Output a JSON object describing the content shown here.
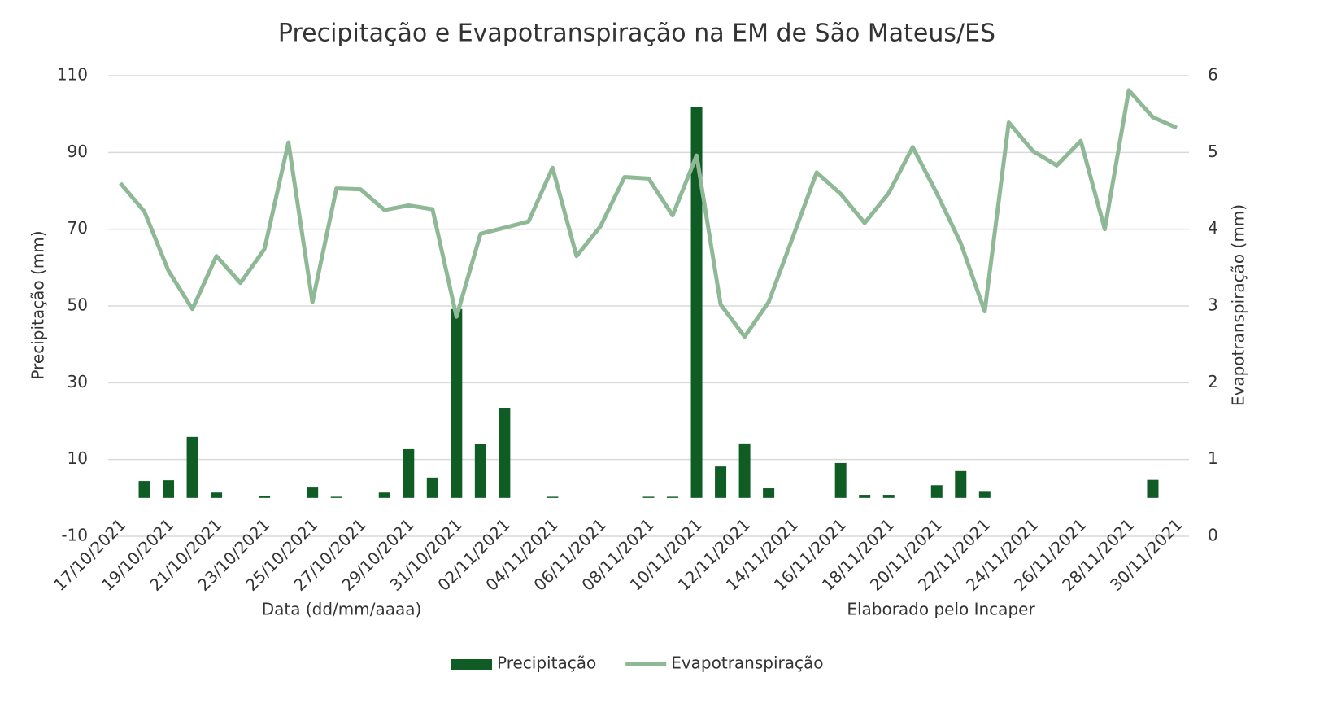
{
  "chart_data": {
    "type": "bar-line",
    "title": "Precipitação e Evapotranspiração na EM de São Mateus/ES",
    "x_label": "Data (dd/mm/aaaa)",
    "annotation": "Elaborado pelo Incaper",
    "y_label": "Precipitação (mm)",
    "y2_label": "Evapotranspiração (mm)",
    "categories": [
      "17/10/2021",
      null,
      "19/10/2021",
      null,
      "21/10/2021",
      null,
      "23/10/2021",
      null,
      "25/10/2021",
      null,
      "27/10/2021",
      null,
      "29/10/2021",
      null,
      "31/10/2021",
      null,
      "02/11/2021",
      null,
      "04/11/2021",
      null,
      "06/11/2021",
      null,
      "08/11/2021",
      null,
      "10/11/2021",
      null,
      "12/11/2021",
      null,
      "14/11/2021",
      null,
      "16/11/2021",
      null,
      "18/11/2021",
      null,
      "20/11/2021",
      null,
      "22/11/2021",
      null,
      "24/11/2021",
      null,
      "26/11/2021",
      null,
      "28/11/2021",
      null,
      "30/11/2021"
    ],
    "series": [
      {
        "name": "Precipitação",
        "type": "bar",
        "color": "#0f5c24",
        "values": [
          0,
          4.4,
          4.6,
          15.9,
          1.4,
          0,
          0.4,
          0,
          2.7,
          0.3,
          0,
          1.4,
          12.7,
          5.3,
          49.2,
          14.0,
          23.5,
          0,
          0.3,
          0,
          0,
          0,
          0.3,
          0.3,
          101.9,
          8.2,
          14.2,
          2.5,
          0,
          0,
          9.1,
          0.8,
          0.8,
          0,
          3.3,
          7.0,
          1.8,
          0,
          0,
          0,
          0,
          0,
          0,
          4.7,
          0
        ]
      },
      {
        "name": "Evapotranspiração",
        "type": "line",
        "axis": "y2",
        "color": "#8fb996",
        "values": [
          4.6,
          4.23,
          3.46,
          2.96,
          3.65,
          3.3,
          3.74,
          5.13,
          3.05,
          4.53,
          4.52,
          4.25,
          4.31,
          4.26,
          2.86,
          3.94,
          4.02,
          4.1,
          4.8,
          3.65,
          4.04,
          4.68,
          4.66,
          4.18,
          4.96,
          3.02,
          2.6,
          3.05,
          3.89,
          4.74,
          4.46,
          4.08,
          4.47,
          5.07,
          4.47,
          3.82,
          2.93,
          5.39,
          5.02,
          4.83,
          5.15,
          4.0,
          5.81,
          5.46,
          5.32
        ]
      }
    ],
    "ylim": [
      -10,
      110
    ],
    "yticks": [
      -10,
      10,
      30,
      50,
      70,
      90,
      110
    ],
    "y2lim": [
      0,
      6
    ],
    "y2ticks": [
      0,
      1,
      2,
      3,
      4,
      5,
      6
    ],
    "grid": true,
    "legend": "bottom"
  }
}
